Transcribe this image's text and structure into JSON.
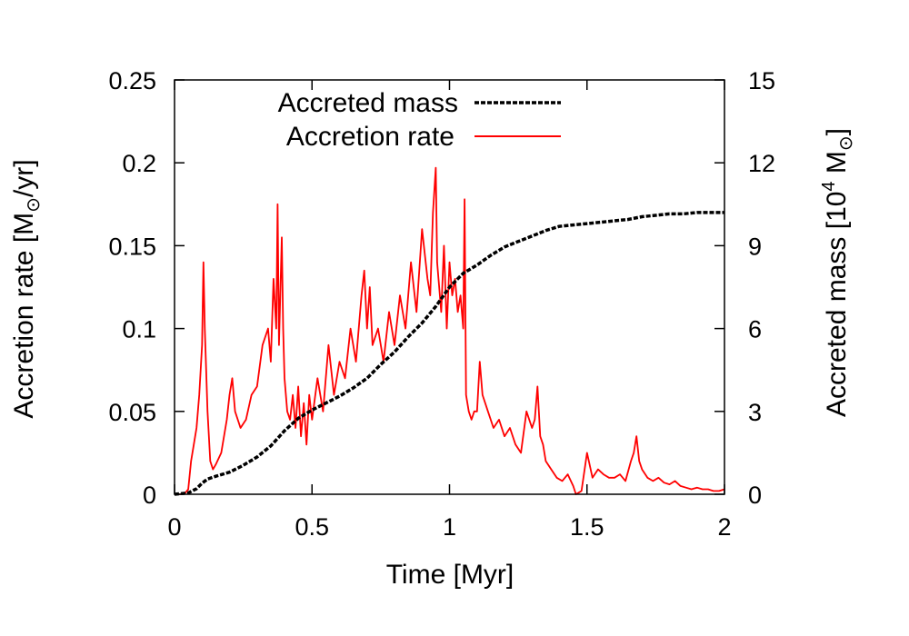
{
  "chart_data": {
    "type": "line",
    "xlabel": "Time [Myr]",
    "ylabel_left": "Accretion rate [M⊙/yr]",
    "ylabel_left_parts": {
      "main": "Accretion rate [M",
      "sub": "⊙",
      "tail": "/yr]"
    },
    "ylabel_right": "Accreted mass [10^4 M⊙]",
    "ylabel_right_parts": {
      "main": "Accreted mass [10",
      "sup": "4",
      "mid": " M",
      "sub": "⊙",
      "tail": "]"
    },
    "xlim": [
      0,
      2
    ],
    "ylim_left": [
      0,
      0.25
    ],
    "ylim_right": [
      0,
      15
    ],
    "x_ticks": [
      "0",
      "0.5",
      "1",
      "1.5",
      "2"
    ],
    "y_left_ticks": [
      "0",
      "0.05",
      "0.1",
      "0.15",
      "0.2",
      "0.25"
    ],
    "y_right_ticks": [
      "0",
      "3",
      "6",
      "9",
      "12",
      "15"
    ],
    "legend_position": "top-left",
    "series": [
      {
        "name": "Accreted mass",
        "axis": "right",
        "style": "dashed",
        "color": "#000000",
        "x": [
          0,
          0.05,
          0.08,
          0.1,
          0.12,
          0.15,
          0.2,
          0.25,
          0.3,
          0.35,
          0.4,
          0.45,
          0.5,
          0.55,
          0.6,
          0.65,
          0.7,
          0.75,
          0.8,
          0.85,
          0.9,
          0.95,
          1.0,
          1.05,
          1.1,
          1.15,
          1.2,
          1.25,
          1.3,
          1.35,
          1.4,
          1.45,
          1.5,
          1.55,
          1.6,
          1.65,
          1.7,
          1.75,
          1.8,
          1.85,
          1.9,
          1.95,
          2.0
        ],
        "values": [
          0,
          0.05,
          0.2,
          0.4,
          0.55,
          0.65,
          0.8,
          1.05,
          1.35,
          1.75,
          2.3,
          2.75,
          3.05,
          3.3,
          3.55,
          3.85,
          4.2,
          4.7,
          5.15,
          5.7,
          6.2,
          6.8,
          7.5,
          8.0,
          8.3,
          8.65,
          8.95,
          9.15,
          9.35,
          9.55,
          9.7,
          9.75,
          9.8,
          9.85,
          9.9,
          9.95,
          10.05,
          10.1,
          10.15,
          10.15,
          10.2,
          10.2,
          10.2
        ]
      },
      {
        "name": "Accretion rate",
        "axis": "left",
        "style": "solid",
        "color": "#ff0000",
        "x": [
          0.0,
          0.02,
          0.04,
          0.05,
          0.06,
          0.07,
          0.08,
          0.09,
          0.1,
          0.105,
          0.11,
          0.12,
          0.13,
          0.14,
          0.15,
          0.17,
          0.19,
          0.2,
          0.21,
          0.22,
          0.24,
          0.26,
          0.28,
          0.3,
          0.32,
          0.34,
          0.35,
          0.36,
          0.37,
          0.375,
          0.38,
          0.39,
          0.395,
          0.4,
          0.41,
          0.42,
          0.43,
          0.44,
          0.45,
          0.46,
          0.47,
          0.48,
          0.49,
          0.5,
          0.52,
          0.54,
          0.56,
          0.58,
          0.6,
          0.62,
          0.64,
          0.66,
          0.68,
          0.69,
          0.7,
          0.71,
          0.72,
          0.74,
          0.76,
          0.78,
          0.8,
          0.82,
          0.84,
          0.86,
          0.88,
          0.9,
          0.92,
          0.93,
          0.94,
          0.95,
          0.955,
          0.96,
          0.97,
          0.98,
          0.99,
          1.0,
          1.01,
          1.02,
          1.03,
          1.04,
          1.05,
          1.055,
          1.06,
          1.07,
          1.08,
          1.09,
          1.1,
          1.11,
          1.12,
          1.14,
          1.16,
          1.18,
          1.2,
          1.22,
          1.24,
          1.26,
          1.28,
          1.3,
          1.31,
          1.32,
          1.33,
          1.34,
          1.35,
          1.37,
          1.39,
          1.41,
          1.43,
          1.45,
          1.46,
          1.48,
          1.5,
          1.52,
          1.54,
          1.56,
          1.58,
          1.6,
          1.62,
          1.64,
          1.66,
          1.67,
          1.68,
          1.69,
          1.7,
          1.72,
          1.74,
          1.76,
          1.78,
          1.8,
          1.82,
          1.84,
          1.86,
          1.88,
          1.9,
          1.92,
          1.94,
          1.96,
          1.98,
          2.0
        ],
        "values": [
          0.0,
          0.0,
          0.001,
          0.003,
          0.02,
          0.03,
          0.04,
          0.06,
          0.09,
          0.14,
          0.1,
          0.05,
          0.02,
          0.015,
          0.018,
          0.025,
          0.045,
          0.06,
          0.07,
          0.05,
          0.04,
          0.045,
          0.06,
          0.065,
          0.09,
          0.1,
          0.08,
          0.13,
          0.1,
          0.175,
          0.09,
          0.155,
          0.1,
          0.07,
          0.05,
          0.045,
          0.06,
          0.04,
          0.065,
          0.035,
          0.055,
          0.03,
          0.06,
          0.045,
          0.07,
          0.05,
          0.09,
          0.06,
          0.08,
          0.07,
          0.1,
          0.08,
          0.12,
          0.135,
          0.1,
          0.125,
          0.09,
          0.1,
          0.08,
          0.11,
          0.09,
          0.12,
          0.1,
          0.14,
          0.11,
          0.16,
          0.13,
          0.12,
          0.17,
          0.197,
          0.14,
          0.13,
          0.11,
          0.15,
          0.1,
          0.14,
          0.12,
          0.13,
          0.11,
          0.12,
          0.1,
          0.178,
          0.06,
          0.05,
          0.045,
          0.05,
          0.05,
          0.08,
          0.06,
          0.05,
          0.04,
          0.045,
          0.035,
          0.04,
          0.03,
          0.025,
          0.05,
          0.04,
          0.045,
          0.065,
          0.035,
          0.03,
          0.02,
          0.015,
          0.01,
          0.008,
          0.012,
          0.005,
          0.0,
          0.002,
          0.025,
          0.01,
          0.015,
          0.012,
          0.01,
          0.01,
          0.012,
          0.008,
          0.02,
          0.025,
          0.035,
          0.02,
          0.015,
          0.01,
          0.008,
          0.01,
          0.007,
          0.006,
          0.008,
          0.005,
          0.004,
          0.003,
          0.004,
          0.003,
          0.003,
          0.002,
          0.002,
          0.003
        ]
      }
    ]
  }
}
